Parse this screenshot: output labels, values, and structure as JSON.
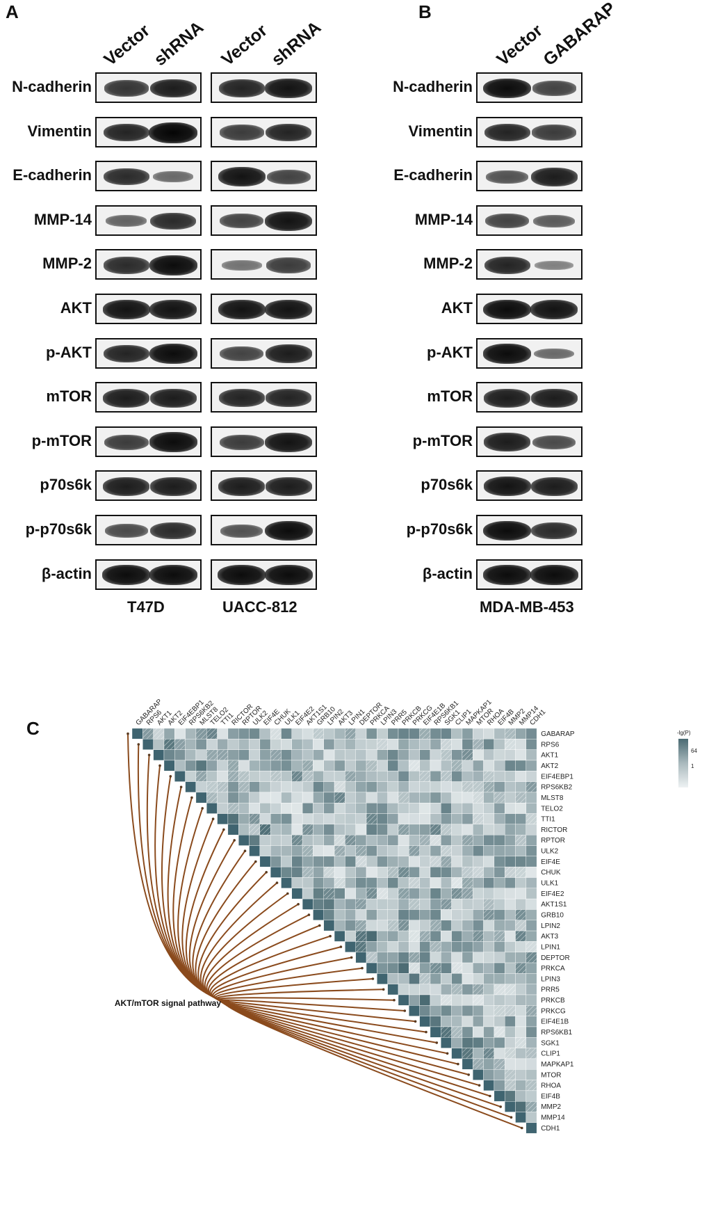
{
  "panels": {
    "A": {
      "letter": "A",
      "columns": [
        "Vector",
        "shRNA",
        "Vector",
        "shRNA"
      ],
      "cell_lines": [
        "T47D",
        "UACC-812"
      ]
    },
    "B": {
      "letter": "B",
      "columns": [
        "Vector",
        "GABARAP"
      ],
      "cell_lines": [
        "MDA-MB-453"
      ]
    },
    "C": {
      "letter": "C",
      "pathway_label": "AKT/mTOR signal pathway",
      "legend_title": "-lg(P)",
      "legend_ticks": [
        "64",
        "1"
      ]
    }
  },
  "proteins": [
    "N-cadherin",
    "Vimentin",
    "E-cadherin",
    "MMP-14",
    "MMP-2",
    "AKT",
    "p-AKT",
    "mTOR",
    "p-mTOR",
    "p70s6k",
    "p-p70s6k",
    "β-actin"
  ],
  "band_intensity": {
    "T47D": [
      [
        0.7,
        0.85
      ],
      [
        0.8,
        1.0
      ],
      [
        0.75,
        0.35
      ],
      [
        0.4,
        0.75
      ],
      [
        0.75,
        0.95
      ],
      [
        0.9,
        0.9
      ],
      [
        0.8,
        0.95
      ],
      [
        0.85,
        0.85
      ],
      [
        0.65,
        0.95
      ],
      [
        0.85,
        0.85
      ],
      [
        0.55,
        0.75
      ],
      [
        0.95,
        0.95
      ]
    ],
    "UACC-812": [
      [
        0.8,
        0.9
      ],
      [
        0.65,
        0.8
      ],
      [
        0.9,
        0.6
      ],
      [
        0.6,
        0.9
      ],
      [
        0.3,
        0.65
      ],
      [
        0.9,
        0.9
      ],
      [
        0.6,
        0.85
      ],
      [
        0.8,
        0.8
      ],
      [
        0.65,
        0.9
      ],
      [
        0.85,
        0.85
      ],
      [
        0.5,
        0.95
      ],
      [
        0.95,
        0.95
      ]
    ],
    "MDA-MB-453": [
      [
        0.95,
        0.6
      ],
      [
        0.8,
        0.65
      ],
      [
        0.5,
        0.85
      ],
      [
        0.6,
        0.45
      ],
      [
        0.8,
        0.2
      ],
      [
        0.95,
        0.9
      ],
      [
        0.95,
        0.35
      ],
      [
        0.85,
        0.85
      ],
      [
        0.85,
        0.55
      ],
      [
        0.9,
        0.85
      ],
      [
        0.95,
        0.75
      ],
      [
        0.95,
        0.95
      ]
    ]
  },
  "heatmap_genes": [
    "GABARAP",
    "RPS6",
    "AKT1",
    "AKT2",
    "EIF4EBP1",
    "RPS6KB2",
    "MLST8",
    "TELO2",
    "TTI1",
    "RICTOR",
    "RPTOR",
    "ULK2",
    "EIF4E",
    "CHUK",
    "ULK1",
    "EIF4E2",
    "AKT1S1",
    "GRB10",
    "LPIN2",
    "AKT3",
    "LPIN1",
    "DEPTOR",
    "PRKCA",
    "LPIN3",
    "PRR5",
    "PRKCB",
    "PRKCG",
    "EIF4E1B",
    "RPS6KB1",
    "SGK1",
    "CLIP1",
    "MAPKAP1",
    "MTOR",
    "RHOA",
    "EIF4B",
    "MMP2",
    "MMP14",
    "CDH1"
  ],
  "colors": {
    "heat_high": "#4a6a72",
    "heat_mid": "#a9b9bd",
    "heat_low": "#eef2f3",
    "diagonal": "#3f6470",
    "curve": "#8a4a1c"
  }
}
